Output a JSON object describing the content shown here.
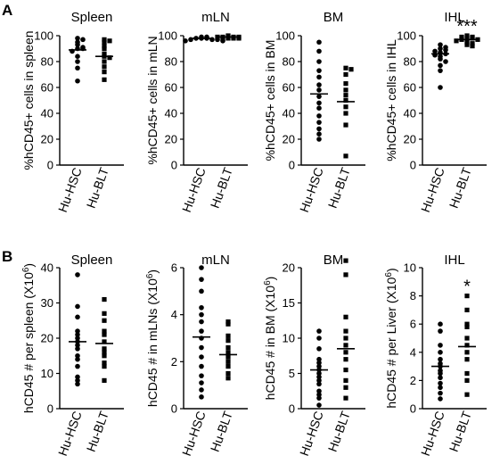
{
  "panels": [
    {
      "letter": "A"
    },
    {
      "letter": "B"
    }
  ],
  "chart_data": [
    {
      "type": "scatter",
      "panel": "A",
      "title": "Spleen",
      "ylabel": "%hCD45+ cells in spleen",
      "xlabel": "",
      "ylim": [
        0,
        100
      ],
      "yticks": [
        0,
        20,
        40,
        60,
        80,
        100
      ],
      "categories": [
        "Hu-HSC",
        "Hu-BLT"
      ],
      "series": [
        {
          "values": [
            98,
            97,
            95,
            93,
            91,
            90,
            90,
            88,
            84,
            80,
            75,
            65
          ],
          "mean": 89
        },
        {
          "values": [
            97,
            96,
            95,
            92,
            90,
            86,
            84,
            83,
            80,
            76,
            72,
            66
          ],
          "mean": 84
        }
      ],
      "significance": [
        "",
        ""
      ]
    },
    {
      "type": "scatter",
      "panel": "A",
      "title": "mLN",
      "ylabel": "%hCD45+ cells in mLN",
      "xlabel": "",
      "ylim": [
        0,
        100
      ],
      "yticks": [
        0,
        20,
        40,
        60,
        80,
        100
      ],
      "categories": [
        "Hu-HSC",
        "Hu-BLT"
      ],
      "series": [
        {
          "values": [
            99,
            99,
            98,
            98,
            98,
            97,
            97,
            97,
            96,
            96
          ],
          "mean": 98
        },
        {
          "values": [
            100,
            99,
            99,
            99,
            99,
            98,
            98,
            98,
            98
          ],
          "mean": 99
        }
      ],
      "significance": [
        "",
        ""
      ]
    },
    {
      "type": "scatter",
      "panel": "A",
      "title": "BM",
      "ylabel": "%hCD45+ cells in BM",
      "xlabel": "",
      "ylim": [
        0,
        100
      ],
      "yticks": [
        0,
        20,
        40,
        60,
        80,
        100
      ],
      "categories": [
        "Hu-HSC",
        "Hu-BLT"
      ],
      "series": [
        {
          "values": [
            95,
            88,
            80,
            73,
            68,
            62,
            58,
            53,
            48,
            44,
            38,
            33,
            28,
            24,
            20
          ],
          "mean": 55
        },
        {
          "values": [
            75,
            74,
            70,
            63,
            58,
            54,
            50,
            45,
            40,
            31,
            7
          ],
          "mean": 49
        }
      ],
      "significance": [
        "",
        ""
      ]
    },
    {
      "type": "scatter",
      "panel": "A",
      "title": "IHL",
      "ylabel": "%hCD45+ cells in IHL",
      "xlabel": "",
      "ylim": [
        0,
        100
      ],
      "yticks": [
        0,
        20,
        40,
        60,
        80,
        100
      ],
      "categories": [
        "Hu-HSC",
        "Hu-BLT"
      ],
      "series": [
        {
          "values": [
            93,
            91,
            90,
            89,
            88,
            87,
            86,
            85,
            84,
            82,
            80,
            77,
            73,
            60
          ],
          "mean": 86
        },
        {
          "values": [
            100,
            99,
            99,
            98,
            98,
            97,
            97,
            96,
            95,
            94,
            93,
            92
          ],
          "mean": 97
        }
      ],
      "significance": [
        "",
        "***"
      ]
    },
    {
      "type": "scatter",
      "panel": "B",
      "title": "Spleen",
      "ylabel": "hCD45 # per spleen (X10^6)",
      "ylabel_main": "hCD45 # per spleen (X10",
      "ylabel_sup": "6",
      "ylabel_tail": ")",
      "xlabel": "",
      "ylim": [
        0,
        40
      ],
      "yticks": [
        0,
        10,
        20,
        30,
        40
      ],
      "categories": [
        "Hu-HSC",
        "Hu-BLT"
      ],
      "series": [
        {
          "values": [
            38,
            29,
            26,
            22,
            21,
            20,
            19,
            18,
            17,
            15,
            14,
            12,
            9,
            8,
            7
          ],
          "mean": 19
        },
        {
          "values": [
            31,
            27,
            25,
            22,
            21,
            19,
            17,
            16,
            15,
            13,
            12,
            8
          ],
          "mean": 18.5
        }
      ],
      "significance": [
        "",
        ""
      ]
    },
    {
      "type": "scatter",
      "panel": "B",
      "title": "mLN",
      "ylabel": "hCD45 # in mLNs (X10^6)",
      "ylabel_main": "hCD45 # in mLNs (X10",
      "ylabel_sup": "6",
      "ylabel_tail": ")",
      "xlabel": "",
      "ylim": [
        0,
        6
      ],
      "yticks": [
        0,
        2,
        4,
        6
      ],
      "categories": [
        "Hu-HSC",
        "Hu-BLT"
      ],
      "series": [
        {
          "values": [
            6.0,
            5.5,
            5.0,
            4.3,
            4.0,
            3.7,
            3.3,
            3.0,
            2.6,
            2.2,
            1.8,
            1.4,
            1.1,
            0.8,
            0.5
          ],
          "mean": 3.05
        },
        {
          "values": [
            3.7,
            3.6,
            3.1,
            2.9,
            2.6,
            2.4,
            2.2,
            2.0,
            1.8,
            1.5,
            1.3
          ],
          "mean": 2.3
        }
      ],
      "significance": [
        "",
        ""
      ]
    },
    {
      "type": "scatter",
      "panel": "B",
      "title": "BM",
      "ylabel": "hCD45 # in BM (X10^6)",
      "ylabel_main": "hCD45 # in BM (X10",
      "ylabel_sup": "6",
      "ylabel_tail": ")",
      "xlabel": "",
      "ylim": [
        0,
        20
      ],
      "yticks": [
        0,
        5,
        10,
        15,
        20
      ],
      "categories": [
        "Hu-HSC",
        "Hu-BLT"
      ],
      "series": [
        {
          "values": [
            11,
            10,
            8.5,
            7,
            6.5,
            6,
            5.5,
            5,
            4.5,
            4,
            3.5,
            2.5,
            2,
            1.5,
            0.5
          ],
          "mean": 5.5
        },
        {
          "values": [
            21,
            19,
            13,
            11,
            10,
            9,
            8,
            7,
            5.5,
            4,
            3,
            1.5
          ],
          "mean": 8.5
        }
      ],
      "significance": [
        "",
        ""
      ]
    },
    {
      "type": "scatter",
      "panel": "B",
      "title": "IHL",
      "ylabel": "hCD45 # per Liver (X10^6)",
      "ylabel_main": "hCD45 # per Liver (X10",
      "ylabel_sup": "6",
      "ylabel_tail": ")",
      "xlabel": "",
      "ylim": [
        0,
        10
      ],
      "yticks": [
        0,
        2,
        4,
        6,
        8,
        10
      ],
      "categories": [
        "Hu-HSC",
        "Hu-BLT"
      ],
      "series": [
        {
          "values": [
            6,
            5.5,
            4.5,
            4,
            3.5,
            3.2,
            3,
            2.7,
            2.5,
            2.2,
            1.8,
            1.5,
            1.1,
            0.7
          ],
          "mean": 3.0
        },
        {
          "values": [
            8,
            7,
            6,
            5.8,
            5,
            4.5,
            4,
            3.5,
            2.5,
            2,
            1
          ],
          "mean": 4.4
        }
      ],
      "significance": [
        "",
        "*"
      ]
    }
  ]
}
